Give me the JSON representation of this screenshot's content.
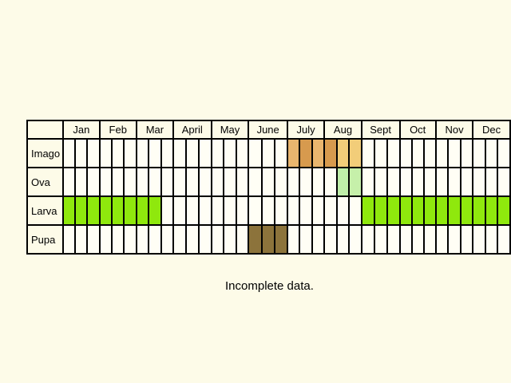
{
  "months": [
    "Jan",
    "Feb",
    "Mar",
    "April",
    "May",
    "June",
    "July",
    "Aug",
    "Sept",
    "Oct",
    "Nov",
    "Dec"
  ],
  "stages": [
    {
      "label": "Imago",
      "cells": {
        "18": "#e9b56e",
        "19": "#d79a4e",
        "20": "#e9b56e",
        "21": "#d79a4e",
        "22": "#f2cd79",
        "23": "#f2cd79"
      }
    },
    {
      "label": "Ova",
      "cells": {
        "22": "#bfefa9",
        "23": "#c6f0aa"
      }
    },
    {
      "label": "Larva",
      "cells": {
        "0": "#8fe80d",
        "1": "#8fe80d",
        "2": "#8fe80d",
        "3": "#8fe80d",
        "4": "#8fe80d",
        "5": "#8fe80d",
        "6": "#8fe80d",
        "7": "#8fe80d",
        "24": "#8fe80d",
        "25": "#8fe80d",
        "26": "#8fe80d",
        "27": "#8fe80d",
        "28": "#8fe80d",
        "29": "#8fe80d",
        "30": "#8fe80d",
        "31": "#8fe80d",
        "32": "#8fe80d",
        "33": "#8fe80d",
        "34": "#8fe80d",
        "35": "#8fe80d"
      }
    },
    {
      "label": "Pupa",
      "cells": {
        "15": "#8c733b",
        "16": "#8c733b",
        "17": "#8c733b"
      }
    }
  ],
  "note": "Incomplete data."
}
